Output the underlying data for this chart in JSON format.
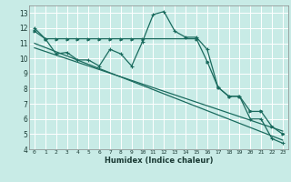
{
  "background_color": "#c8ebe6",
  "grid_color": "#ffffff",
  "line_color": "#1a6b5e",
  "xlabel": "Humidex (Indice chaleur)",
  "ylim": [
    4,
    13.5
  ],
  "xlim": [
    -0.5,
    23.5
  ],
  "yticks": [
    4,
    5,
    6,
    7,
    8,
    9,
    10,
    11,
    12,
    13
  ],
  "xticks": [
    0,
    1,
    2,
    3,
    4,
    5,
    6,
    7,
    8,
    9,
    10,
    11,
    12,
    13,
    14,
    15,
    16,
    17,
    18,
    19,
    20,
    21,
    22,
    23
  ],
  "series1_x": [
    0,
    1,
    2,
    3,
    4,
    5,
    6,
    7,
    8,
    9,
    10,
    11,
    12,
    13,
    14,
    15,
    16,
    17,
    18,
    19,
    20,
    21,
    22,
    23
  ],
  "series1_y": [
    12.0,
    11.3,
    10.3,
    10.4,
    9.9,
    9.9,
    9.5,
    10.6,
    10.3,
    9.5,
    11.1,
    12.9,
    13.1,
    11.8,
    11.4,
    11.4,
    10.6,
    8.1,
    7.5,
    7.5,
    6.0,
    6.0,
    4.7,
    4.4
  ],
  "series2_x": [
    0,
    1,
    2,
    3,
    4,
    5,
    6,
    7,
    8,
    9,
    10,
    15,
    16,
    17,
    18,
    19,
    20,
    21,
    22,
    23
  ],
  "series2_y": [
    11.8,
    11.3,
    11.3,
    11.3,
    11.3,
    11.3,
    11.3,
    11.3,
    11.3,
    11.3,
    11.3,
    11.3,
    9.8,
    8.1,
    7.5,
    7.5,
    6.5,
    6.5,
    5.5,
    5.0
  ],
  "series3_x": [
    0,
    23
  ],
  "series3_y": [
    11.0,
    4.6
  ],
  "series4_x": [
    0,
    23
  ],
  "series4_y": [
    10.7,
    5.2
  ]
}
